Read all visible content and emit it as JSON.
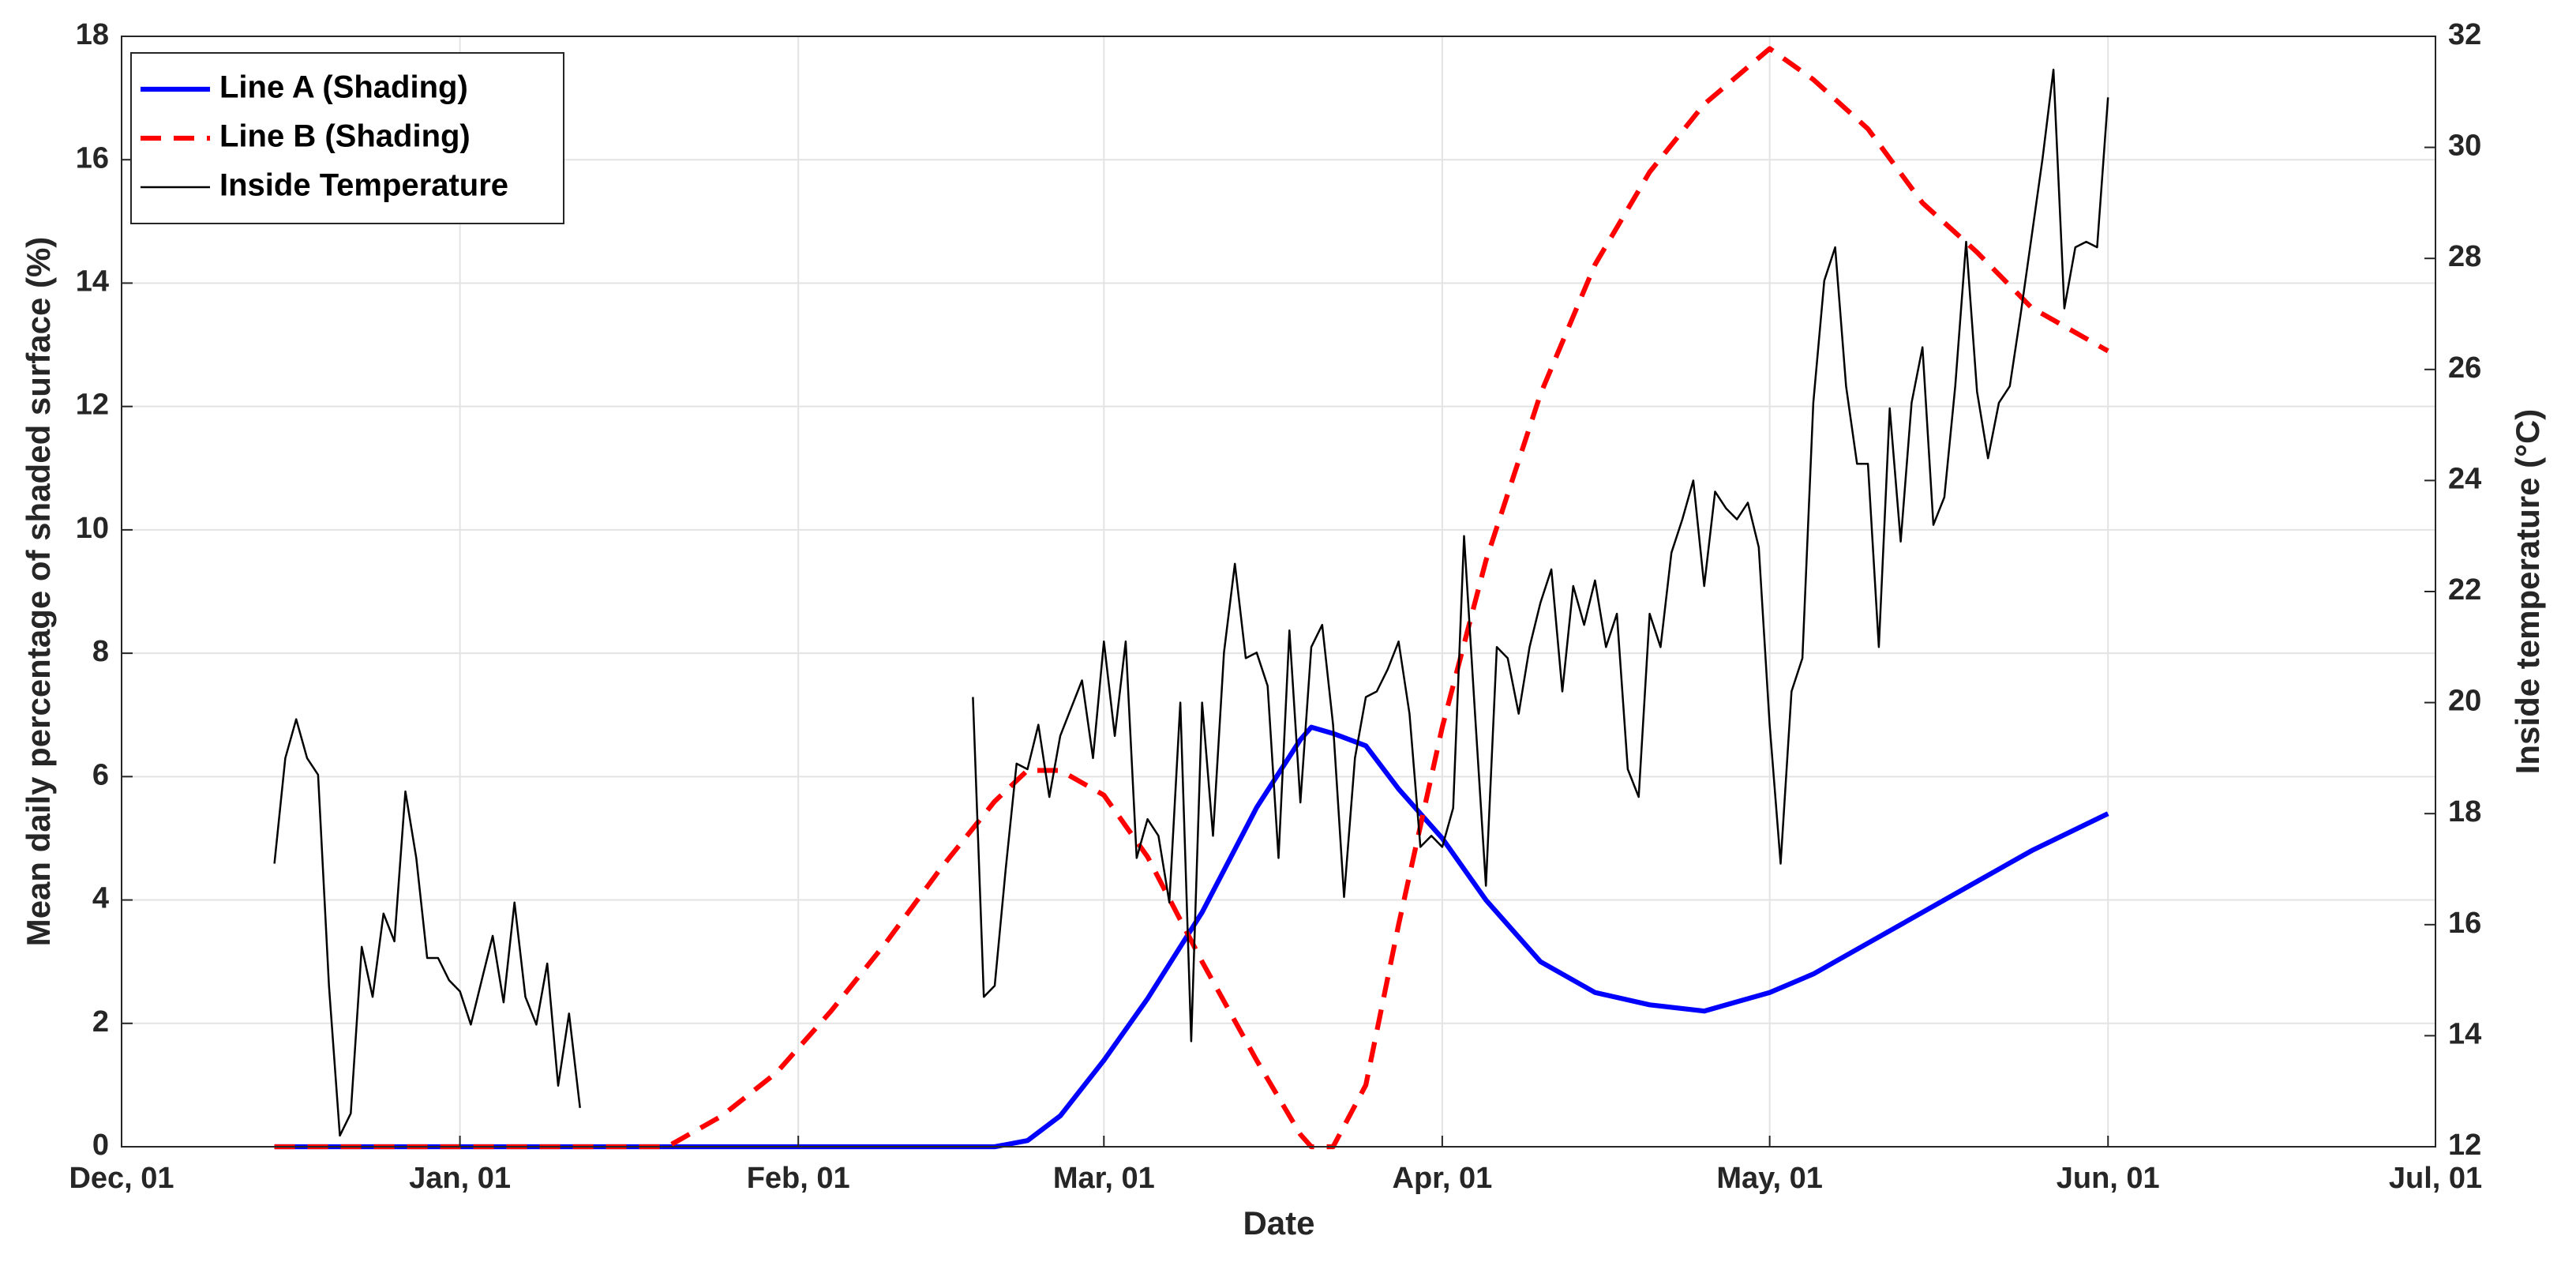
{
  "chart_data": {
    "type": "line",
    "xlabel": "Date",
    "ylabel": "Mean daily percentage of shaded surface (%)",
    "y2label": "Inside temperature (°C)",
    "xlim": [
      "Dec, 01",
      "Jul, 01"
    ],
    "xticks": [
      "Dec, 01",
      "Jan, 01",
      "Feb, 01",
      "Mar, 01",
      "Apr, 01",
      "May, 01",
      "Jun, 01",
      "Jul, 01"
    ],
    "ylim": [
      0,
      18
    ],
    "yticks": [
      0,
      2,
      4,
      6,
      8,
      10,
      12,
      14,
      16,
      18
    ],
    "y2lim": [
      12,
      32
    ],
    "y2ticks": [
      12,
      14,
      16,
      18,
      20,
      22,
      24,
      26,
      28,
      30,
      32
    ],
    "grid": true,
    "legend": "upper left",
    "series": [
      {
        "name": "Line A (Shading)",
        "color": "#0000ff",
        "linestyle": "solid",
        "linewidth": 3,
        "x": [
          "Dec, 15",
          "Dec, 25",
          "Jan, 05",
          "Jan, 15",
          "Jan, 20",
          "Jan, 25",
          "Jan, 30",
          "Feb, 04",
          "Feb, 09",
          "Feb, 14",
          "Feb, 19",
          "Feb, 22",
          "Feb, 25",
          "Mar, 01",
          "Mar, 05",
          "Mar, 10",
          "Mar, 15",
          "Mar, 19",
          "Mar, 20",
          "Mar, 22",
          "Mar, 25",
          "Mar, 28",
          "Apr, 01",
          "Apr, 05",
          "Apr, 10",
          "Apr, 15",
          "Apr, 20",
          "Apr, 25",
          "May, 01",
          "May, 05",
          "May, 10",
          "May, 15",
          "May, 20",
          "May, 25",
          "Jun, 01"
        ],
        "values": [
          0,
          0,
          0,
          0,
          0,
          0,
          0,
          0,
          0,
          0,
          0,
          0.1,
          0.5,
          1.4,
          2.4,
          3.8,
          5.5,
          6.6,
          6.8,
          6.7,
          6.5,
          5.8,
          5.0,
          4.0,
          3.0,
          2.5,
          2.3,
          2.2,
          2.5,
          2.8,
          3.3,
          3.8,
          4.3,
          4.8,
          5.4
        ]
      },
      {
        "name": "Line B (Shading)",
        "color": "#ff0000",
        "linestyle": "dashed",
        "linewidth": 3,
        "x": [
          "Dec, 15",
          "Dec, 25",
          "Jan, 05",
          "Jan, 15",
          "Jan, 20",
          "Jan, 25",
          "Jan, 30",
          "Feb, 04",
          "Feb, 09",
          "Feb, 14",
          "Feb, 19",
          "Feb, 22",
          "Feb, 25",
          "Mar, 01",
          "Mar, 05",
          "Mar, 10",
          "Mar, 15",
          "Mar, 19",
          "Mar, 20",
          "Mar, 22",
          "Mar, 25",
          "Mar, 28",
          "Apr, 01",
          "Apr, 05",
          "Apr, 10",
          "Apr, 15",
          "Apr, 20",
          "Apr, 25",
          "May, 01",
          "May, 05",
          "May, 10",
          "May, 15",
          "May, 20",
          "May, 25",
          "Jun, 01"
        ],
        "values": [
          0,
          0,
          0,
          0,
          0,
          0.5,
          1.2,
          2.2,
          3.3,
          4.5,
          5.6,
          6.1,
          6.1,
          5.7,
          4.7,
          3.0,
          1.4,
          0.2,
          0,
          0,
          1.0,
          3.6,
          6.8,
          9.5,
          12.2,
          14.3,
          15.8,
          16.9,
          17.8,
          17.3,
          16.5,
          15.3,
          14.5,
          13.6,
          12.9
        ]
      },
      {
        "name": "Inside Temperature",
        "color": "#000000",
        "linestyle": "solid",
        "linewidth": 1.2,
        "axis": "y2",
        "x": [
          "Dec, 15",
          "Dec, 16",
          "Dec, 17",
          "Dec, 18",
          "Dec, 19",
          "Dec, 20",
          "Dec, 21",
          "Dec, 22",
          "Dec, 23",
          "Dec, 24",
          "Dec, 25",
          "Dec, 26",
          "Dec, 27",
          "Dec, 28",
          "Dec, 29",
          "Dec, 30",
          "Dec, 31",
          "Jan, 01",
          "Jan, 02",
          "Jan, 03",
          "Jan, 04",
          "Jan, 05",
          "Jan, 06",
          "Jan, 07",
          "Jan, 08",
          "Jan, 09",
          "Jan, 10",
          "Jan, 11",
          "Jan, 12",
          "Feb, 01",
          "Feb, 17",
          "Feb, 18",
          "Feb, 19",
          "Feb, 20",
          "Feb, 21",
          "Feb, 22",
          "Feb, 23",
          "Feb, 24",
          "Feb, 25",
          "Feb, 26",
          "Feb, 27",
          "Feb, 28",
          "Mar, 01",
          "Mar, 02",
          "Mar, 03",
          "Mar, 04",
          "Mar, 05",
          "Mar, 06",
          "Mar, 07",
          "Mar, 08",
          "Mar, 09",
          "Mar, 10",
          "Mar, 11",
          "Mar, 12",
          "Mar, 13",
          "Mar, 14",
          "Mar, 15",
          "Mar, 16",
          "Mar, 17",
          "Mar, 18",
          "Mar, 19",
          "Mar, 20",
          "Mar, 21",
          "Mar, 22",
          "Mar, 23",
          "Mar, 24",
          "Mar, 25",
          "Mar, 26",
          "Mar, 27",
          "Mar, 28",
          "Mar, 29",
          "Mar, 30",
          "Mar, 31",
          "Apr, 01",
          "Apr, 02",
          "Apr, 03",
          "Apr, 04",
          "Apr, 05",
          "Apr, 06",
          "Apr, 07",
          "Apr, 08",
          "Apr, 09",
          "Apr, 10",
          "Apr, 11",
          "Apr, 12",
          "Apr, 13",
          "Apr, 14",
          "Apr, 15",
          "Apr, 16",
          "Apr, 17",
          "Apr, 18",
          "Apr, 19",
          "Apr, 20",
          "Apr, 21",
          "Apr, 22",
          "Apr, 23",
          "Apr, 24",
          "Apr, 25",
          "Apr, 26",
          "Apr, 27",
          "Apr, 28",
          "Apr, 29",
          "Apr, 30",
          "May, 01",
          "May, 02",
          "May, 03",
          "May, 04",
          "May, 05",
          "May, 06",
          "May, 07",
          "May, 08",
          "May, 09",
          "May, 10",
          "May, 11",
          "May, 12",
          "May, 13",
          "May, 14",
          "May, 15",
          "May, 16",
          "May, 17",
          "May, 18",
          "May, 19",
          "May, 20",
          "May, 21",
          "May, 22",
          "May, 23",
          "May, 24",
          "May, 25",
          "May, 26",
          "May, 27",
          "May, 28",
          "May, 29",
          "May, 30",
          "May, 31",
          "Jun, 01"
        ],
        "values": [
          17.1,
          19.0,
          19.7,
          19.0,
          18.7,
          14.9,
          12.2,
          12.6,
          15.6,
          14.7,
          16.2,
          15.7,
          18.4,
          17.2,
          15.4,
          15.4,
          15.0,
          14.8,
          14.2,
          15.0,
          15.8,
          14.6,
          16.4,
          14.7,
          14.2,
          15.3,
          13.1,
          14.4,
          12.7,
          null,
          20.1,
          14.7,
          14.9,
          17.0,
          18.9,
          18.8,
          19.6,
          18.3,
          19.4,
          19.9,
          20.4,
          19.0,
          21.1,
          19.4,
          21.1,
          17.2,
          17.9,
          17.6,
          16.4,
          20.0,
          13.9,
          20.0,
          17.6,
          20.9,
          22.5,
          20.8,
          20.9,
          20.3,
          17.2,
          21.3,
          18.2,
          21.0,
          21.4,
          19.6,
          16.5,
          19.0,
          20.1,
          20.2,
          20.6,
          21.1,
          19.8,
          17.4,
          17.6,
          17.4,
          18.1,
          23.0,
          19.8,
          16.7,
          21.0,
          20.8,
          19.8,
          21.0,
          21.8,
          22.4,
          20.2,
          22.1,
          21.4,
          22.2,
          21.0,
          21.6,
          18.8,
          18.3,
          21.6,
          21.0,
          22.7,
          23.3,
          24.0,
          22.1,
          23.8,
          23.5,
          23.3,
          23.6,
          22.8,
          19.6,
          17.1,
          20.2,
          20.8,
          25.4,
          27.6,
          28.2,
          25.7,
          24.3,
          24.3,
          21.0,
          25.3,
          22.9,
          25.4,
          26.4,
          23.2,
          23.7,
          25.7,
          28.3,
          25.6,
          24.4,
          25.4,
          25.7,
          27.0,
          28.4,
          29.8,
          31.4,
          27.1,
          28.2,
          28.3,
          28.2,
          30.9
        ]
      }
    ]
  }
}
